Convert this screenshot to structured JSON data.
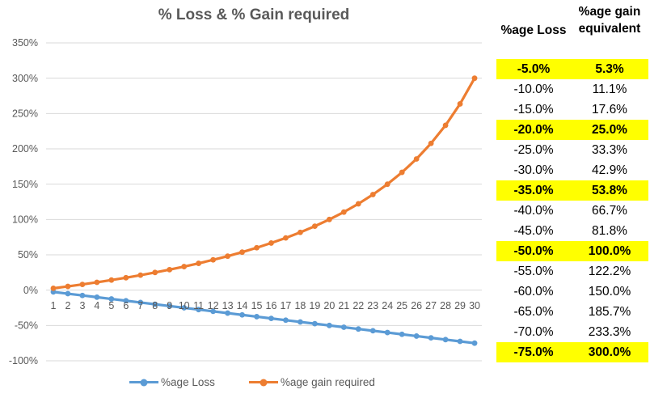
{
  "chart": {
    "title": "% Loss & % Gain required",
    "legend": [
      {
        "label": "%age Loss",
        "color": "#5B9BD5"
      },
      {
        "label": "%age gain required",
        "color": "#ED7D31"
      }
    ],
    "colors": {
      "grid": "#D9D9D9",
      "axis_text": "#595959",
      "title": "#595959"
    }
  },
  "chart_data": {
    "type": "line",
    "title": "% Loss & % Gain required",
    "xlabel": "",
    "ylabel": "",
    "x": [
      1,
      2,
      3,
      4,
      5,
      6,
      7,
      8,
      9,
      10,
      11,
      12,
      13,
      14,
      15,
      16,
      17,
      18,
      19,
      20,
      21,
      22,
      23,
      24,
      25,
      26,
      27,
      28,
      29,
      30
    ],
    "series": [
      {
        "name": "%age Loss",
        "color": "#5B9BD5",
        "values": [
          -2.5,
          -5,
          -7.5,
          -10,
          -12.5,
          -15,
          -17.5,
          -20,
          -22.5,
          -25,
          -27.5,
          -30,
          -32.5,
          -35,
          -37.5,
          -40,
          -42.5,
          -45,
          -47.5,
          -50,
          -52.5,
          -55,
          -57.5,
          -60,
          -62.5,
          -65,
          -67.5,
          -70,
          -72.5,
          -75
        ]
      },
      {
        "name": "%age gain required",
        "color": "#ED7D31",
        "values": [
          2.6,
          5.3,
          8.1,
          11.1,
          14.3,
          17.6,
          21.2,
          25.0,
          29.0,
          33.3,
          37.9,
          42.9,
          48.1,
          53.8,
          60.0,
          66.7,
          73.9,
          81.8,
          90.5,
          100.0,
          110.5,
          122.2,
          135.3,
          150.0,
          166.7,
          185.7,
          207.7,
          233.3,
          263.6,
          300.0
        ]
      }
    ],
    "ylim": [
      -100,
      350
    ],
    "ytick_values": [
      350,
      300,
      250,
      200,
      150,
      100,
      50,
      0,
      -50,
      -100
    ],
    "ytick_labels": [
      "350%",
      "300%",
      "250%",
      "200%",
      "150%",
      "100%",
      "50%",
      "0%",
      "-50%",
      "-100%"
    ],
    "grid": true,
    "legend_position": "bottom"
  },
  "table": {
    "col1_header": "%age Loss",
    "col2_header_line1": "%age gain",
    "col2_header_line2": "equivalent",
    "highlight_color": "#FFFF00",
    "rows": [
      {
        "loss": "-5.0%",
        "gain": "5.3%",
        "highlight": true
      },
      {
        "loss": "-10.0%",
        "gain": "11.1%",
        "highlight": false
      },
      {
        "loss": "-15.0%",
        "gain": "17.6%",
        "highlight": false
      },
      {
        "loss": "-20.0%",
        "gain": "25.0%",
        "highlight": true
      },
      {
        "loss": "-25.0%",
        "gain": "33.3%",
        "highlight": false
      },
      {
        "loss": "-30.0%",
        "gain": "42.9%",
        "highlight": false
      },
      {
        "loss": "-35.0%",
        "gain": "53.8%",
        "highlight": true
      },
      {
        "loss": "-40.0%",
        "gain": "66.7%",
        "highlight": false
      },
      {
        "loss": "-45.0%",
        "gain": "81.8%",
        "highlight": false
      },
      {
        "loss": "-50.0%",
        "gain": "100.0%",
        "highlight": true
      },
      {
        "loss": "-55.0%",
        "gain": "122.2%",
        "highlight": false
      },
      {
        "loss": "-60.0%",
        "gain": "150.0%",
        "highlight": false
      },
      {
        "loss": "-65.0%",
        "gain": "185.7%",
        "highlight": false
      },
      {
        "loss": "-70.0%",
        "gain": "233.3%",
        "highlight": false
      },
      {
        "loss": "-75.0%",
        "gain": "300.0%",
        "highlight": true
      }
    ]
  }
}
